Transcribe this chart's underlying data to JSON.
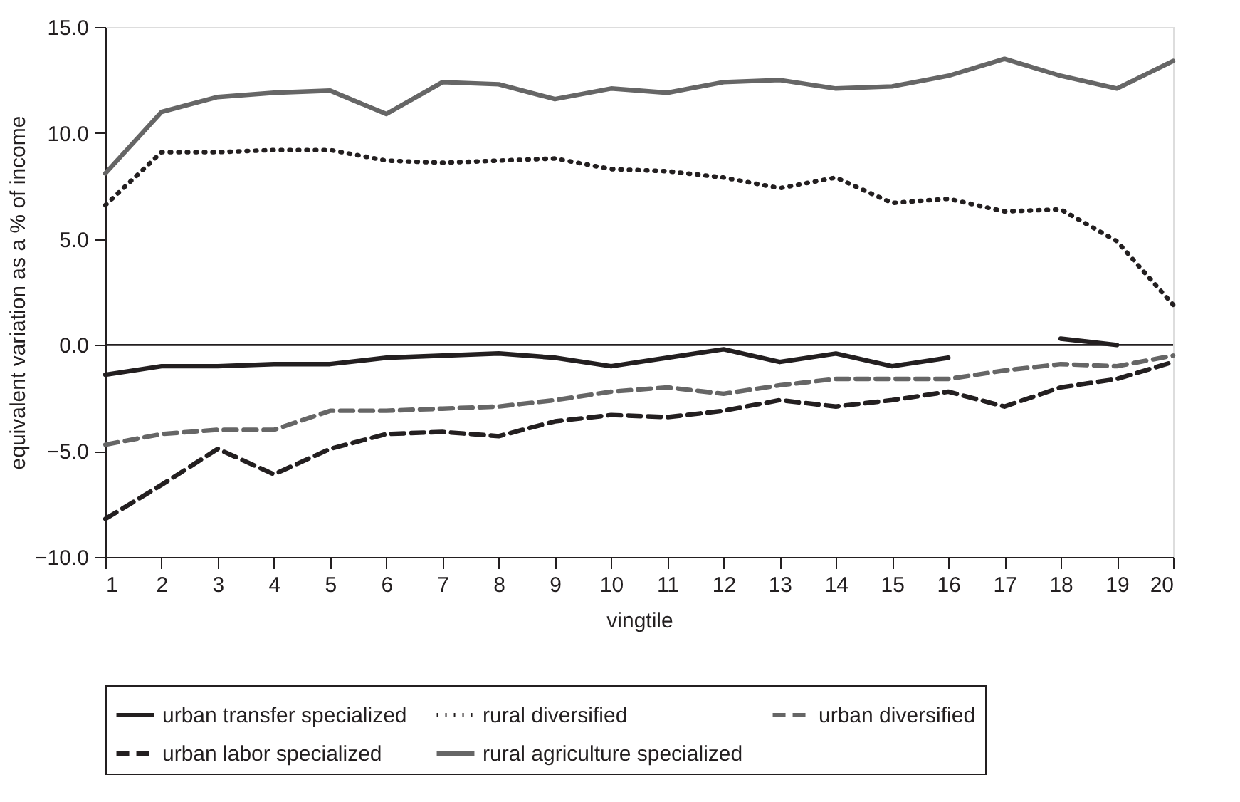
{
  "chart_data": {
    "type": "line",
    "xlabel": "vingtile",
    "ylabel": "equivalent variation as a % of income",
    "x": [
      1,
      2,
      3,
      4,
      5,
      6,
      7,
      8,
      9,
      10,
      11,
      12,
      13,
      14,
      15,
      16,
      17,
      18,
      19,
      20
    ],
    "xlim": [
      1,
      20
    ],
    "xticks": [
      1,
      2,
      3,
      4,
      5,
      6,
      7,
      8,
      9,
      10,
      11,
      12,
      13,
      14,
      15,
      16,
      17,
      18,
      19,
      20
    ],
    "ylim": [
      -10,
      15
    ],
    "yticks": [
      {
        "value": -10,
        "label": "−10.0"
      },
      {
        "value": -5,
        "label": "−5.0"
      },
      {
        "value": 0,
        "label": "0.0"
      },
      {
        "value": 5,
        "label": "5.0"
      },
      {
        "value": 10,
        "label": "10.0"
      },
      {
        "value": 15,
        "label": "15.0"
      }
    ],
    "grid": false,
    "legend": "bottom",
    "marker": "none",
    "ref_lines": [
      {
        "axis": "y",
        "value": 0,
        "color": "#231f20",
        "line_style": "solid"
      }
    ],
    "series": [
      {
        "name": "urban transfer specialized",
        "color": "#231f20",
        "line_style": "solid",
        "values": [
          -1.4,
          -1.0,
          -1.0,
          -0.9,
          -0.9,
          -0.6,
          -0.5,
          -0.4,
          -0.6,
          -1.0,
          -0.6,
          -0.2,
          -0.8,
          -0.4,
          -1.0,
          -0.6,
          null,
          0.3,
          0.0,
          null
        ]
      },
      {
        "name": "rural diversified",
        "color": "#231f20",
        "line_style": "dotted",
        "values": [
          6.6,
          9.1,
          9.1,
          9.2,
          9.2,
          8.7,
          8.6,
          8.7,
          8.8,
          8.3,
          8.2,
          7.9,
          7.4,
          7.9,
          6.7,
          6.9,
          6.3,
          6.4,
          4.9,
          1.9
        ]
      },
      {
        "name": "urban diversified",
        "color": "#666666",
        "line_style": "dashed",
        "values": [
          -4.7,
          -4.2,
          -4.0,
          -4.0,
          -3.1,
          -3.1,
          -3.0,
          -2.9,
          -2.6,
          -2.2,
          -2.0,
          -2.3,
          -1.9,
          -1.6,
          -1.6,
          -1.6,
          -1.2,
          -0.9,
          -1.0,
          -0.5
        ]
      },
      {
        "name": "urban labor specialized",
        "color": "#231f20",
        "line_style": "dashed",
        "values": [
          -8.2,
          -6.6,
          -4.9,
          -6.1,
          -4.9,
          -4.2,
          -4.1,
          -4.3,
          -3.6,
          -3.3,
          -3.4,
          -3.1,
          -2.6,
          -2.9,
          -2.6,
          -2.2,
          -2.9,
          -2.0,
          -1.6,
          -0.8
        ]
      },
      {
        "name": "rural agriculture specialized",
        "color": "#666666",
        "line_style": "solid",
        "values": [
          8.1,
          11.0,
          11.7,
          11.9,
          12.0,
          10.9,
          12.4,
          12.3,
          11.6,
          12.1,
          11.9,
          12.4,
          12.5,
          12.1,
          12.2,
          12.7,
          13.5,
          12.7,
          12.1,
          13.4
        ]
      }
    ]
  }
}
